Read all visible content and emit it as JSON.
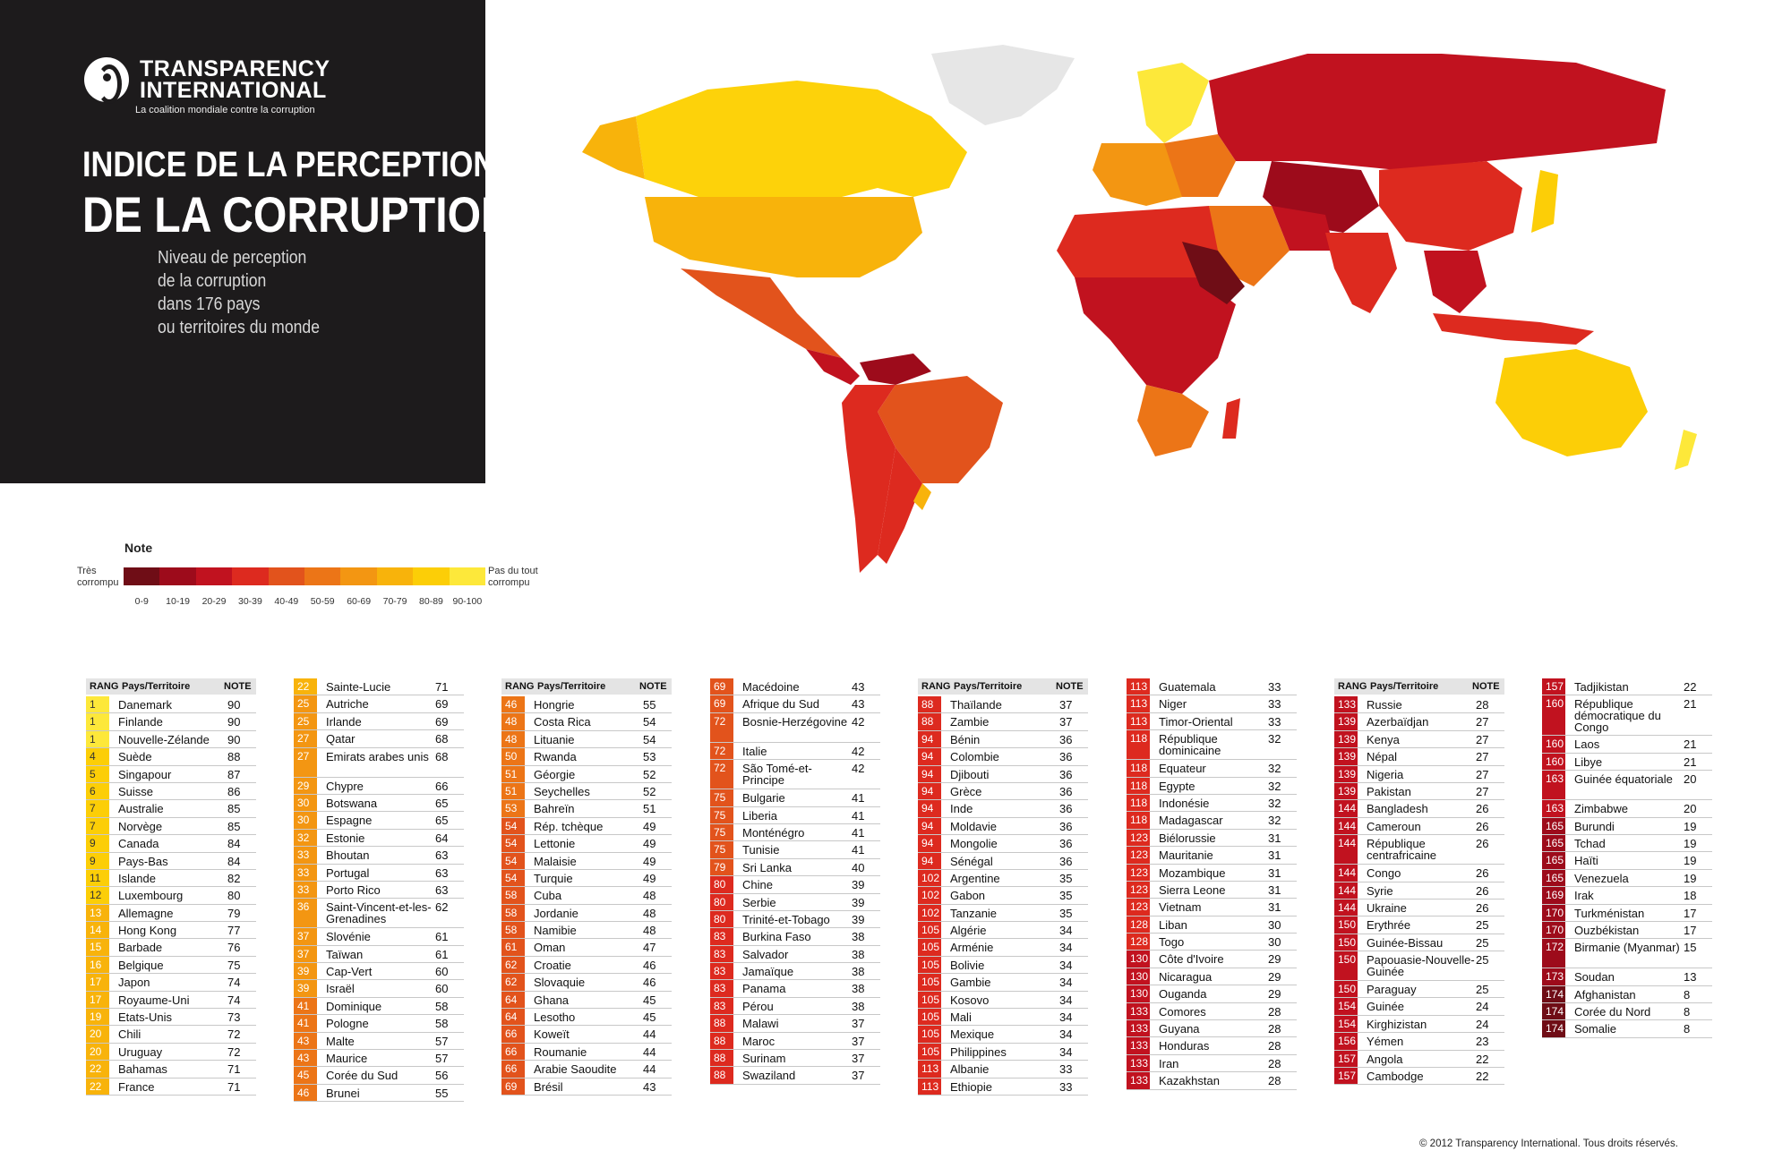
{
  "header": {
    "org_line1": "TRANSPARENCY",
    "org_line2": "INTERNATIONAL",
    "tagline": "La coalition mondiale contre la corruption",
    "title_line1": "INDICE DE LA PERCEPTION",
    "title_line2": "DE LA CORRUPTION",
    "subtitle": [
      "Niveau de perception",
      "de la corruption",
      "dans 176 pays",
      "ou territoires du monde"
    ]
  },
  "legend": {
    "title": "Note",
    "low_label": [
      "Très",
      "corrompu"
    ],
    "high_label": [
      "Pas du tout",
      "corrompu"
    ],
    "bands": [
      "0-9",
      "10-19",
      "20-29",
      "30-39",
      "40-49",
      "50-59",
      "60-69",
      "70-79",
      "80-89",
      "90-100"
    ],
    "colors": [
      "#6f0d16",
      "#9d0b1b",
      "#c1121f",
      "#dd2a1f",
      "#e2531c",
      "#ec7517",
      "#f39612",
      "#f8b30b",
      "#fcce07",
      "#fde83a"
    ]
  },
  "table_headers": {
    "rank": "RANG",
    "country": "Pays/Territoire",
    "score": "NOTE"
  },
  "columns": [
    [
      [
        "1",
        "Danemark",
        "90"
      ],
      [
        "1",
        "Finlande",
        "90"
      ],
      [
        "1",
        "Nouvelle-Zélande",
        "90"
      ],
      [
        "4",
        "Suède",
        "88"
      ],
      [
        "5",
        "Singapour",
        "87"
      ],
      [
        "6",
        "Suisse",
        "86"
      ],
      [
        "7",
        "Australie",
        "85"
      ],
      [
        "7",
        "Norvège",
        "85"
      ],
      [
        "9",
        "Canada",
        "84"
      ],
      [
        "9",
        "Pays-Bas",
        "84"
      ],
      [
        "11",
        "Islande",
        "82"
      ],
      [
        "12",
        "Luxembourg",
        "80"
      ],
      [
        "13",
        "Allemagne",
        "79"
      ],
      [
        "14",
        "Hong Kong",
        "77"
      ],
      [
        "15",
        "Barbade",
        "76"
      ],
      [
        "16",
        "Belgique",
        "75"
      ],
      [
        "17",
        "Japon",
        "74"
      ],
      [
        "17",
        "Royaume-Uni",
        "74"
      ],
      [
        "19",
        "Etats-Unis",
        "73"
      ],
      [
        "20",
        "Chili",
        "72"
      ],
      [
        "20",
        "Uruguay",
        "72"
      ],
      [
        "22",
        "Bahamas",
        "71"
      ],
      [
        "22",
        "France",
        "71"
      ]
    ],
    [
      [
        "22",
        "Sainte-Lucie",
        "71"
      ],
      [
        "25",
        "Autriche",
        "69"
      ],
      [
        "25",
        "Irlande",
        "69"
      ],
      [
        "27",
        "Qatar",
        "68"
      ],
      [
        "27",
        "Emirats arabes unis",
        "68"
      ],
      [
        "29",
        "Chypre",
        "66"
      ],
      [
        "30",
        "Botswana",
        "65"
      ],
      [
        "30",
        "Espagne",
        "65"
      ],
      [
        "32",
        "Estonie",
        "64"
      ],
      [
        "33",
        "Bhoutan",
        "63"
      ],
      [
        "33",
        "Portugal",
        "63"
      ],
      [
        "33",
        "Porto Rico",
        "63"
      ],
      [
        "36",
        "Saint-Vincent-et-les-Grenadines",
        "62"
      ],
      [
        "37",
        "Slovénie",
        "61"
      ],
      [
        "37",
        "Taïwan",
        "61"
      ],
      [
        "39",
        "Cap-Vert",
        "60"
      ],
      [
        "39",
        "Israël",
        "60"
      ],
      [
        "41",
        "Dominique",
        "58"
      ],
      [
        "41",
        "Pologne",
        "58"
      ],
      [
        "43",
        "Malte",
        "57"
      ],
      [
        "43",
        "Maurice",
        "57"
      ],
      [
        "45",
        "Corée du Sud",
        "56"
      ],
      [
        "46",
        "Brunei",
        "55"
      ]
    ],
    [
      [
        "46",
        "Hongrie",
        "55"
      ],
      [
        "48",
        "Costa Rica",
        "54"
      ],
      [
        "48",
        "Lituanie",
        "54"
      ],
      [
        "50",
        "Rwanda",
        "53"
      ],
      [
        "51",
        "Géorgie",
        "52"
      ],
      [
        "51",
        "Seychelles",
        "52"
      ],
      [
        "53",
        "Bahreïn",
        "51"
      ],
      [
        "54",
        "Rép. tchèque",
        "49"
      ],
      [
        "54",
        "Lettonie",
        "49"
      ],
      [
        "54",
        "Malaisie",
        "49"
      ],
      [
        "54",
        "Turquie",
        "49"
      ],
      [
        "58",
        "Cuba",
        "48"
      ],
      [
        "58",
        "Jordanie",
        "48"
      ],
      [
        "58",
        "Namibie",
        "48"
      ],
      [
        "61",
        "Oman",
        "47"
      ],
      [
        "62",
        "Croatie",
        "46"
      ],
      [
        "62",
        "Slovaquie",
        "46"
      ],
      [
        "64",
        "Ghana",
        "45"
      ],
      [
        "64",
        "Lesotho",
        "45"
      ],
      [
        "66",
        "Koweït",
        "44"
      ],
      [
        "66",
        "Roumanie",
        "44"
      ],
      [
        "66",
        "Arabie Saoudite",
        "44"
      ],
      [
        "69",
        "Brésil",
        "43"
      ]
    ],
    [
      [
        "69",
        "Macédoine",
        "43"
      ],
      [
        "69",
        "Afrique du Sud",
        "43"
      ],
      [
        "72",
        "Bosnie-Herzégovine",
        "42"
      ],
      [
        "72",
        "Italie",
        "42"
      ],
      [
        "72",
        "São Tomé-et-Principe",
        "42"
      ],
      [
        "75",
        "Bulgarie",
        "41"
      ],
      [
        "75",
        "Liberia",
        "41"
      ],
      [
        "75",
        "Monténégro",
        "41"
      ],
      [
        "75",
        "Tunisie",
        "41"
      ],
      [
        "79",
        "Sri Lanka",
        "40"
      ],
      [
        "80",
        "Chine",
        "39"
      ],
      [
        "80",
        "Serbie",
        "39"
      ],
      [
        "80",
        "Trinité-et-Tobago",
        "39"
      ],
      [
        "83",
        "Burkina Faso",
        "38"
      ],
      [
        "83",
        "Salvador",
        "38"
      ],
      [
        "83",
        "Jamaïque",
        "38"
      ],
      [
        "83",
        "Panama",
        "38"
      ],
      [
        "83",
        "Pérou",
        "38"
      ],
      [
        "88",
        "Malawi",
        "37"
      ],
      [
        "88",
        "Maroc",
        "37"
      ],
      [
        "88",
        "Surinam",
        "37"
      ],
      [
        "88",
        "Swaziland",
        "37"
      ]
    ],
    [
      [
        "88",
        "Thaïlande",
        "37"
      ],
      [
        "88",
        "Zambie",
        "37"
      ],
      [
        "94",
        "Bénin",
        "36"
      ],
      [
        "94",
        "Colombie",
        "36"
      ],
      [
        "94",
        "Djibouti",
        "36"
      ],
      [
        "94",
        "Grèce",
        "36"
      ],
      [
        "94",
        "Inde",
        "36"
      ],
      [
        "94",
        "Moldavie",
        "36"
      ],
      [
        "94",
        "Mongolie",
        "36"
      ],
      [
        "94",
        "Sénégal",
        "36"
      ],
      [
        "102",
        "Argentine",
        "35"
      ],
      [
        "102",
        "Gabon",
        "35"
      ],
      [
        "102",
        "Tanzanie",
        "35"
      ],
      [
        "105",
        "Algérie",
        "34"
      ],
      [
        "105",
        "Arménie",
        "34"
      ],
      [
        "105",
        "Bolivie",
        "34"
      ],
      [
        "105",
        "Gambie",
        "34"
      ],
      [
        "105",
        "Kosovo",
        "34"
      ],
      [
        "105",
        "Mali",
        "34"
      ],
      [
        "105",
        "Mexique",
        "34"
      ],
      [
        "105",
        "Philippines",
        "34"
      ],
      [
        "113",
        "Albanie",
        "33"
      ],
      [
        "113",
        "Ethiopie",
        "33"
      ]
    ],
    [
      [
        "113",
        "Guatemala",
        "33"
      ],
      [
        "113",
        "Niger",
        "33"
      ],
      [
        "113",
        "Timor-Oriental",
        "33"
      ],
      [
        "118",
        "République dominicaine",
        "32"
      ],
      [
        "118",
        "Equateur",
        "32"
      ],
      [
        "118",
        "Egypte",
        "32"
      ],
      [
        "118",
        "Indonésie",
        "32"
      ],
      [
        "118",
        "Madagascar",
        "32"
      ],
      [
        "123",
        "Biélorussie",
        "31"
      ],
      [
        "123",
        "Mauritanie",
        "31"
      ],
      [
        "123",
        "Mozambique",
        "31"
      ],
      [
        "123",
        "Sierra Leone",
        "31"
      ],
      [
        "123",
        "Vietnam",
        "31"
      ],
      [
        "128",
        "Liban",
        "30"
      ],
      [
        "128",
        "Togo",
        "30"
      ],
      [
        "130",
        "Côte d'Ivoire",
        "29"
      ],
      [
        "130",
        "Nicaragua",
        "29"
      ],
      [
        "130",
        "Ouganda",
        "29"
      ],
      [
        "133",
        "Comores",
        "28"
      ],
      [
        "133",
        "Guyana",
        "28"
      ],
      [
        "133",
        "Honduras",
        "28"
      ],
      [
        "133",
        "Iran",
        "28"
      ],
      [
        "133",
        "Kazakhstan",
        "28"
      ]
    ],
    [
      [
        "133",
        "Russie",
        "28"
      ],
      [
        "139",
        "Azerbaïdjan",
        "27"
      ],
      [
        "139",
        "Kenya",
        "27"
      ],
      [
        "139",
        "Népal",
        "27"
      ],
      [
        "139",
        "Nigeria",
        "27"
      ],
      [
        "139",
        "Pakistan",
        "27"
      ],
      [
        "144",
        "Bangladesh",
        "26"
      ],
      [
        "144",
        "Cameroun",
        "26"
      ],
      [
        "144",
        "République centrafricaine",
        "26"
      ],
      [
        "144",
        "Congo",
        "26"
      ],
      [
        "144",
        "Syrie",
        "26"
      ],
      [
        "144",
        "Ukraine",
        "26"
      ],
      [
        "150",
        "Erythrée",
        "25"
      ],
      [
        "150",
        "Guinée-Bissau",
        "25"
      ],
      [
        "150",
        "Papouasie-Nouvelle-Guinée",
        "25"
      ],
      [
        "150",
        "Paraguay",
        "25"
      ],
      [
        "154",
        "Guinée",
        "24"
      ],
      [
        "154",
        "Kirghizistan",
        "24"
      ],
      [
        "156",
        "Yémen",
        "23"
      ],
      [
        "157",
        "Angola",
        "22"
      ],
      [
        "157",
        "Cambodge",
        "22"
      ]
    ],
    [
      [
        "157",
        "Tadjikistan",
        "22"
      ],
      [
        "160",
        "République démocratique du Congo",
        "21"
      ],
      [
        "160",
        "Laos",
        "21"
      ],
      [
        "160",
        "Libye",
        "21"
      ],
      [
        "163",
        "Guinée équatoriale",
        "20"
      ],
      [
        "163",
        "Zimbabwe",
        "20"
      ],
      [
        "165",
        "Burundi",
        "19"
      ],
      [
        "165",
        "Tchad",
        "19"
      ],
      [
        "165",
        "Haïti",
        "19"
      ],
      [
        "165",
        "Venezuela",
        "19"
      ],
      [
        "169",
        "Irak",
        "18"
      ],
      [
        "170",
        "Turkménistan",
        "17"
      ],
      [
        "170",
        "Ouzbékistan",
        "17"
      ],
      [
        "172",
        "Birmanie (Myanmar)",
        "15"
      ],
      [
        "173",
        "Soudan",
        "13"
      ],
      [
        "174",
        "Afghanistan",
        "8"
      ],
      [
        "174",
        "Corée du Nord",
        "8"
      ],
      [
        "174",
        "Somalie",
        "8"
      ]
    ]
  ],
  "copyright": "© 2012 Transparency International. Tous droits réservés."
}
